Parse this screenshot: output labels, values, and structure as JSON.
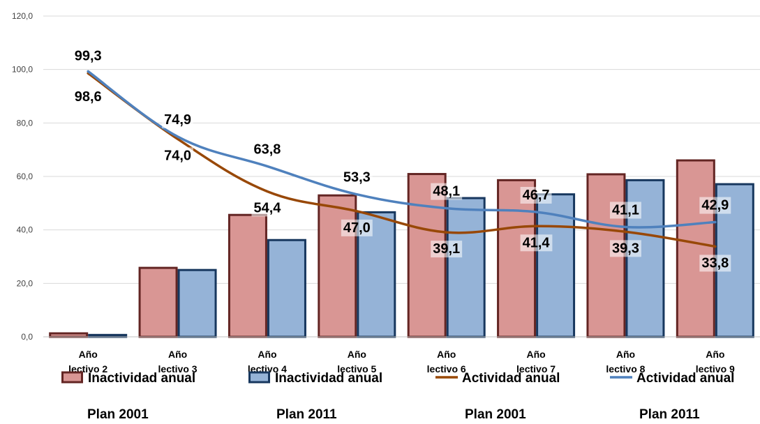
{
  "chart_data": {
    "type": "bar",
    "categories": [
      [
        "Año",
        "lectivo 2"
      ],
      [
        "Año",
        "lectivo 3"
      ],
      [
        "Año",
        "lectivo 4"
      ],
      [
        "Año",
        "lectivo 5"
      ],
      [
        "Año",
        "lectivo 6"
      ],
      [
        "Año",
        "lectivo 7"
      ],
      [
        "Año",
        "lectivo 8"
      ],
      [
        "Año",
        "lectivo 9"
      ]
    ],
    "ylim": [
      0,
      120
    ],
    "yticks": [
      "0,0",
      "20,0",
      "40,0",
      "60,0",
      "80,0",
      "100,0",
      "120,0"
    ],
    "grid": true,
    "legend_position": "bottom",
    "series": [
      {
        "name": [
          "Inactividad anual",
          "Plan 2001"
        ],
        "kind": "bar",
        "color": "#d99694",
        "border": "#632523",
        "values": [
          1.3,
          25.8,
          45.6,
          52.9,
          60.9,
          58.6,
          60.8,
          66.0
        ]
      },
      {
        "name": [
          "Inactividad anual",
          "Plan 2011"
        ],
        "kind": "bar",
        "color": "#95b3d7",
        "border": "#17375e",
        "values": [
          0.7,
          25.0,
          36.2,
          46.6,
          51.9,
          53.3,
          58.6,
          57.1
        ]
      },
      {
        "name": [
          "Actividad anual",
          "Plan 2001"
        ],
        "kind": "line",
        "color": "#984807",
        "values": [
          98.6,
          74.0,
          54.4,
          47.0,
          39.1,
          41.4,
          39.3,
          33.8
        ],
        "labels": [
          "98,6",
          "74,0",
          "54,4",
          "47,0",
          "39,1",
          "41,4",
          "39,3",
          "33,8"
        ]
      },
      {
        "name": [
          "Actividad anual",
          "Plan 2011"
        ],
        "kind": "line",
        "color": "#4f81bd",
        "values": [
          99.3,
          74.9,
          63.8,
          53.3,
          48.1,
          46.7,
          41.1,
          42.9
        ],
        "labels": [
          "99,3",
          "74,9",
          "63,8",
          "53,3",
          "48,1",
          "46,7",
          "41,1",
          "42,9"
        ]
      }
    ]
  }
}
